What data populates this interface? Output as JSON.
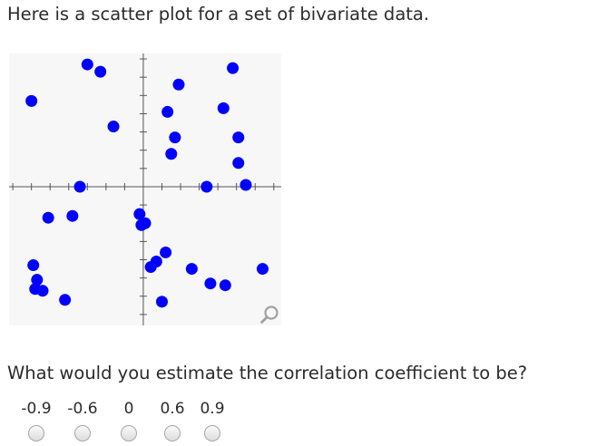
{
  "intro_text": "Here is a scatter plot for a set of bivariate data.",
  "question_text": "What would you estimate the correlation coefficient to be?",
  "choices": [
    {
      "label": "-0.9",
      "selected": false
    },
    {
      "label": "-0.6",
      "selected": false
    },
    {
      "label": "0",
      "selected": false
    },
    {
      "label": "0.6",
      "selected": false
    },
    {
      "label": "0.9",
      "selected": false
    }
  ],
  "zoom_icon": "magnifier-icon",
  "chart_data": {
    "type": "scatter",
    "title": "",
    "xlabel": "",
    "ylabel": "",
    "xlim": [
      -7.2,
      7.4
    ],
    "ylim": [
      -7.6,
      7.3
    ],
    "tick_spacing": 1,
    "grid": false,
    "point_color": "#0000ff",
    "background_color": "#f7f7f7",
    "points": [
      {
        "x": -3.0,
        "y": 6.7
      },
      {
        "x": -2.3,
        "y": 6.3
      },
      {
        "x": -6.0,
        "y": 4.7
      },
      {
        "x": -1.6,
        "y": 3.3
      },
      {
        "x": 1.9,
        "y": 5.6
      },
      {
        "x": 4.8,
        "y": 6.5
      },
      {
        "x": 1.3,
        "y": 4.1
      },
      {
        "x": 4.3,
        "y": 4.3
      },
      {
        "x": 1.7,
        "y": 2.7
      },
      {
        "x": 5.1,
        "y": 2.7
      },
      {
        "x": 1.5,
        "y": 1.8
      },
      {
        "x": 5.1,
        "y": 1.3
      },
      {
        "x": -3.4,
        "y": 0.0
      },
      {
        "x": 3.4,
        "y": 0.0
      },
      {
        "x": 5.5,
        "y": 0.1
      },
      {
        "x": -5.1,
        "y": -1.7
      },
      {
        "x": -3.8,
        "y": -1.6
      },
      {
        "x": -0.2,
        "y": -1.5
      },
      {
        "x": -0.1,
        "y": -2.1
      },
      {
        "x": 0.1,
        "y": -2.0
      },
      {
        "x": 1.2,
        "y": -3.6
      },
      {
        "x": 0.7,
        "y": -4.1
      },
      {
        "x": 0.4,
        "y": -4.4
      },
      {
        "x": 2.6,
        "y": -4.5
      },
      {
        "x": -5.9,
        "y": -4.3
      },
      {
        "x": -5.7,
        "y": -5.1
      },
      {
        "x": -5.8,
        "y": -5.6
      },
      {
        "x": -5.4,
        "y": -5.7
      },
      {
        "x": -4.2,
        "y": -6.2
      },
      {
        "x": 3.6,
        "y": -5.3
      },
      {
        "x": 4.4,
        "y": -5.4
      },
      {
        "x": 6.4,
        "y": -4.5
      },
      {
        "x": 1.0,
        "y": -6.3
      }
    ]
  }
}
